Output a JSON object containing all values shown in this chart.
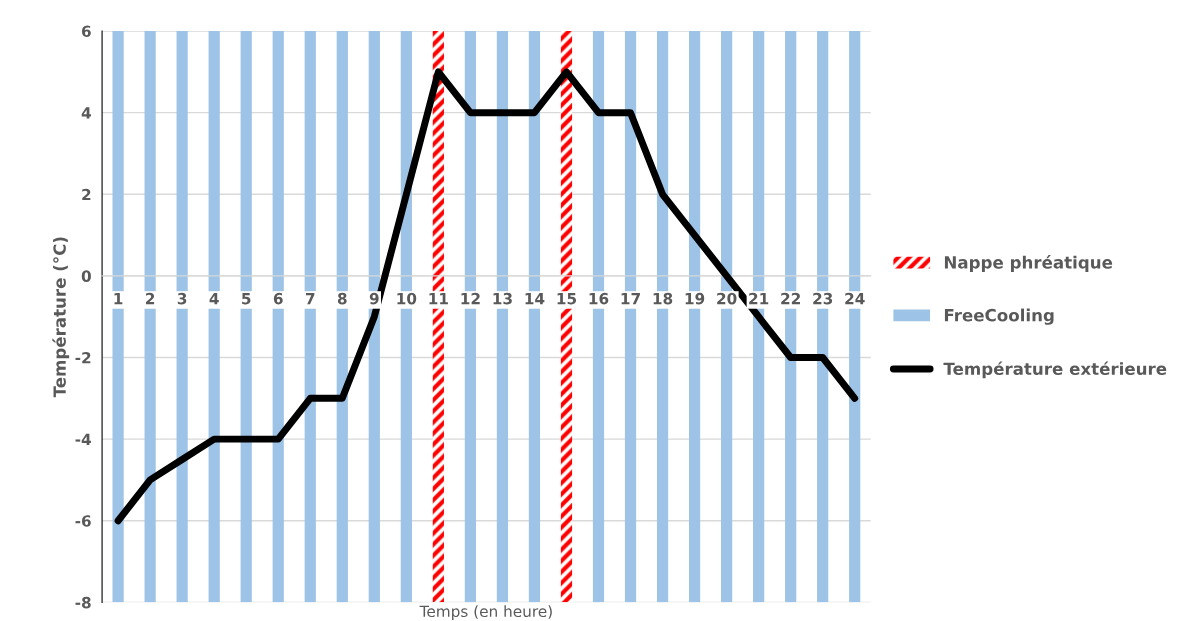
{
  "chart_data": {
    "type": "bar",
    "stacked": true,
    "xlabel": "Temps (en heure)",
    "ylabel": "Température (°C)",
    "categories": [
      "1",
      "2",
      "3",
      "4",
      "5",
      "6",
      "7",
      "8",
      "9",
      "10",
      "11",
      "12",
      "13",
      "14",
      "15",
      "16",
      "17",
      "18",
      "19",
      "20",
      "21",
      "22",
      "23",
      "24"
    ],
    "series": [
      {
        "name": "Nappe phréatique",
        "color": "#ff0000",
        "line_style": "dashed",
        "values": [
          null,
          null,
          null,
          null,
          null,
          null,
          null,
          null,
          null,
          null,
          6,
          null,
          null,
          null,
          6,
          null,
          null,
          null,
          null,
          null,
          null,
          null,
          null,
          null
        ]
      },
      {
        "color": "#ff0000",
        "line_style": "dashed",
        "values": [
          null,
          null,
          null,
          null,
          null,
          null,
          null,
          null,
          null,
          null,
          -8,
          null,
          null,
          null,
          -8,
          null,
          null,
          null,
          null,
          null,
          null,
          null,
          null,
          null
        ]
      },
      {
        "name": "FreeCooling",
        "color": "#9dc3e6",
        "values": [
          6,
          6,
          6,
          6,
          6,
          6,
          6,
          6,
          6,
          6,
          null,
          6,
          6,
          6,
          null,
          6,
          6,
          6,
          6,
          6,
          6,
          6,
          6,
          6
        ]
      },
      {
        "color": "#9dc3e6",
        "values": [
          -8,
          -8,
          -8,
          -8,
          -8,
          -8,
          -8,
          -8,
          -8,
          -8,
          null,
          -8,
          -8,
          -8,
          null,
          -8,
          -8,
          -8,
          -8,
          -8,
          -8,
          -8,
          -8,
          -8
        ]
      },
      {
        "name": "Température extérieure",
        "type": "line",
        "color": "#000000",
        "values": [
          -6,
          -5,
          -4.5,
          -4,
          -4,
          -4,
          -3,
          -3,
          -1,
          2,
          5,
          4,
          4,
          4,
          5,
          4,
          4,
          2,
          1,
          0,
          -1,
          -2,
          -2,
          -3
        ]
      }
    ],
    "ylim": [
      -8,
      6
    ],
    "yticks": [
      -8,
      -6,
      -4,
      -2,
      0,
      2,
      4,
      6
    ],
    "grid": "y",
    "legend": "right"
  }
}
